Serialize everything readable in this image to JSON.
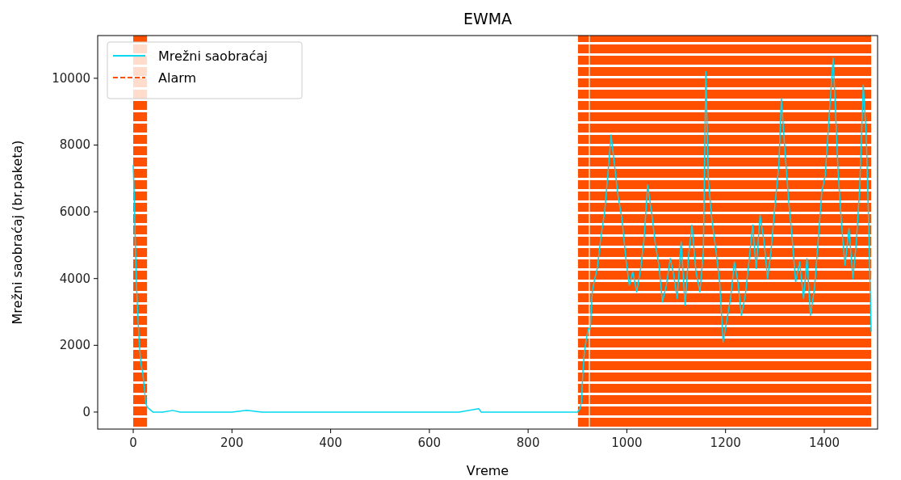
{
  "chart_data": {
    "type": "line",
    "title": "EWMA",
    "xlabel": "Vreme",
    "ylabel": "Mrežni saobraćaj (br.paketa)",
    "xlim": [
      -72,
      1508
    ],
    "ylim": [
      -510,
      11280
    ],
    "xticks": [
      0,
      200,
      400,
      600,
      800,
      1000,
      1200,
      1400
    ],
    "yticks": [
      0,
      2000,
      4000,
      6000,
      8000,
      10000
    ],
    "legend": "top left",
    "grid": false,
    "series": [
      {
        "name": "Mrežni saobraćaj",
        "color": "#00d8f0",
        "x": [
          0,
          2,
          4,
          6,
          8,
          10,
          13,
          16,
          19,
          22,
          25,
          28,
          32,
          40,
          60,
          80,
          95,
          100,
          120,
          150,
          180,
          200,
          230,
          260,
          300,
          340,
          380,
          420,
          460,
          500,
          540,
          580,
          620,
          660,
          700,
          705,
          740,
          780,
          820,
          860,
          890,
          900,
          905,
          908,
          911,
          914,
          918,
          922,
          926,
          930,
          935,
          940,
          948,
          955,
          962,
          968,
          975,
          982,
          990,
          998,
          1005,
          1012,
          1020,
          1028,
          1035,
          1042,
          1050,
          1058,
          1065,
          1072,
          1080,
          1088,
          1095,
          1102,
          1110,
          1118,
          1125,
          1132,
          1140,
          1148,
          1155,
          1160,
          1165,
          1172,
          1180,
          1188,
          1195,
          1202,
          1210,
          1218,
          1225,
          1232,
          1240,
          1248,
          1255,
          1262,
          1270,
          1278,
          1285,
          1292,
          1300,
          1308,
          1313,
          1320,
          1328,
          1335,
          1342,
          1350,
          1358,
          1365,
          1372,
          1380,
          1388,
          1395,
          1402,
          1410,
          1418,
          1422,
          1428,
          1435,
          1442,
          1450,
          1458,
          1465,
          1472,
          1479,
          1485,
          1490,
          1495
        ],
        "values": [
          7400,
          6500,
          5200,
          4100,
          3300,
          2700,
          1900,
          1400,
          1200,
          800,
          300,
          150,
          100,
          0,
          0,
          50,
          0,
          0,
          0,
          0,
          0,
          0,
          50,
          0,
          0,
          0,
          0,
          0,
          0,
          0,
          0,
          0,
          0,
          0,
          100,
          0,
          0,
          0,
          0,
          0,
          0,
          0,
          100,
          300,
          1200,
          1800,
          2200,
          2500,
          2500,
          3600,
          4000,
          4300,
          5300,
          6000,
          7200,
          8300,
          7400,
          6500,
          5800,
          4600,
          3800,
          4200,
          3600,
          4300,
          5200,
          6800,
          6000,
          5000,
          4400,
          3300,
          3800,
          4600,
          4100,
          3400,
          5100,
          3200,
          4700,
          5600,
          4200,
          3600,
          4800,
          10200,
          7000,
          5800,
          4900,
          3900,
          2100,
          2700,
          3400,
          4500,
          3900,
          2900,
          3500,
          4600,
          5600,
          4300,
          5900,
          5100,
          4000,
          4800,
          6200,
          7400,
          9400,
          7900,
          6300,
          5200,
          3900,
          4500,
          3400,
          4600,
          2900,
          3700,
          5200,
          6600,
          7100,
          8900,
          10600,
          9300,
          7200,
          5600,
          4400,
          5500,
          4000,
          5100,
          6800,
          9800,
          8300,
          5600,
          2400
        ]
      }
    ],
    "bands": [
      {
        "axis": "x",
        "from": 0,
        "to": 28,
        "label": "Alarm",
        "color": "#ff5000"
      },
      {
        "axis": "x",
        "from": 901,
        "to": 923,
        "color": "#ff5000"
      },
      {
        "axis": "x",
        "from": 925,
        "to": 1495,
        "color": "#ff5000"
      }
    ]
  }
}
